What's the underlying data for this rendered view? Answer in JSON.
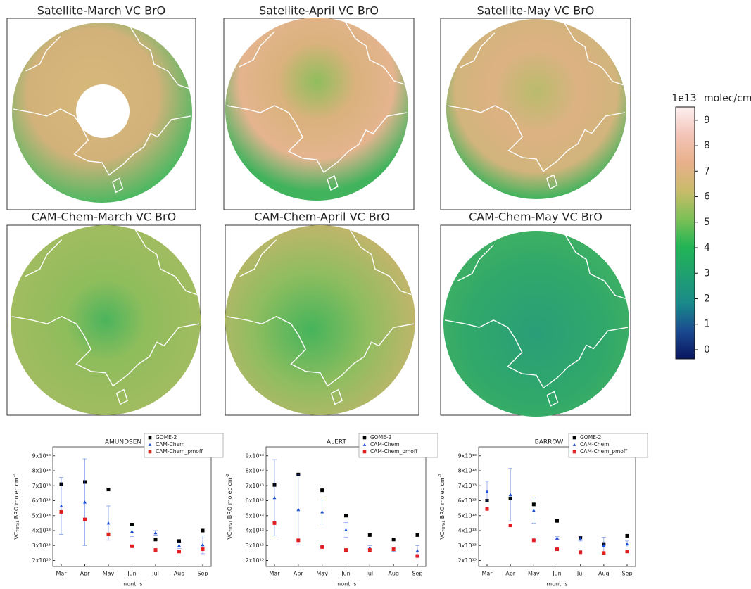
{
  "chart_data": [
    {
      "type": "map",
      "title": "Satellite-March VC BrO"
    },
    {
      "type": "map",
      "title": "Satellite-April VC BrO"
    },
    {
      "type": "map",
      "title": "Satellite-May VC BrO"
    },
    {
      "type": "map",
      "title": "CAM-Chem-March VC BrO"
    },
    {
      "type": "map",
      "title": "CAM-Chem-April VC BrO"
    },
    {
      "type": "map",
      "title": "CAM-Chem-May VC BrO"
    },
    {
      "type": "colorbar",
      "exponent": "1e13",
      "label": "molec/cm²",
      "colors": [
        "#0a1560",
        "#1a4a90",
        "#1a8a8a",
        "#1fa070",
        "#22b455",
        "#7cc055",
        "#c9bb6a",
        "#e8b08a",
        "#f4c4b8",
        "#fdf0f0"
      ],
      "ylim": [
        -0.36,
        9.52
      ],
      "yticks": [
        0,
        1,
        2,
        3,
        4,
        5,
        6,
        7,
        8,
        9
      ]
    },
    {
      "type": "scatter",
      "title": "AMUNDSEN",
      "xlabel": "months",
      "ylabel": [
        "VC",
        "TOTAL",
        " BRO molec cm",
        "-2"
      ],
      "categories": [
        "Mar",
        "Apr",
        "May",
        "Jun",
        "Jul",
        "Aug",
        "Sep"
      ],
      "ylim": [
        16000000000000.0,
        96000000000000.0
      ],
      "yticks": [
        {
          "value": 20000000000000.0,
          "label": "2x10¹³"
        },
        {
          "value": 30000000000000.0,
          "label": "3x10¹³"
        },
        {
          "value": 40000000000000.0,
          "label": "4x10¹³"
        },
        {
          "value": 50000000000000.0,
          "label": "5x10¹³"
        },
        {
          "value": 60000000000000.0,
          "label": "6x10¹³"
        },
        {
          "value": 70000000000000.0,
          "label": "7x10¹³"
        },
        {
          "value": 80000000000000.0,
          "label": "8x10¹³"
        },
        {
          "value": 90000000000000.0,
          "label": "9x10¹³"
        }
      ],
      "series": [
        {
          "name": "GOME-2",
          "color": "#000000",
          "marker": "square",
          "values": [
            71000000000000.0,
            72500000000000.0,
            67500000000000.0,
            44000000000000.0,
            34000000000000.0,
            33000000000000.0,
            40000000000000.0
          ]
        },
        {
          "name": "CAM-Chem",
          "color": "#1f4fd8",
          "marker": "triangle",
          "values": [
            56500000000000.0,
            59000000000000.0,
            45000000000000.0,
            39500000000000.0,
            38500000000000.0,
            30000000000000.0,
            30500000000000.0
          ],
          "errors": [
            19000000000000.0,
            29000000000000.0,
            11500000000000.0,
            3500000000000.0,
            1500000000000.0,
            2000000000000.0,
            6000000000000.0
          ]
        },
        {
          "name": "CAM-Chem_pmoff",
          "color": "#e02020",
          "marker": "square",
          "values": [
            52500000000000.0,
            47500000000000.0,
            37500000000000.0,
            29500000000000.0,
            27000000000000.0,
            26000000000000.0,
            27500000000000.0
          ]
        }
      ]
    },
    {
      "type": "scatter",
      "title": "ALERT",
      "xlabel": "months",
      "ylabel": [
        "VC",
        "TOTAL",
        " BRO molec cm",
        "-2"
      ],
      "categories": [
        "Mar",
        "Apr",
        "May",
        "Jun",
        "Jul",
        "Aug",
        "Sep"
      ],
      "ylim": [
        16000000000000.0,
        96000000000000.0
      ],
      "yticks": [
        {
          "value": 20000000000000.0,
          "label": "2x10¹³"
        },
        {
          "value": 30000000000000.0,
          "label": "3x10¹³"
        },
        {
          "value": 40000000000000.0,
          "label": "4x10¹³"
        },
        {
          "value": 50000000000000.0,
          "label": "5x10¹³"
        },
        {
          "value": 60000000000000.0,
          "label": "6x10¹³"
        },
        {
          "value": 70000000000000.0,
          "label": "7x10¹³"
        },
        {
          "value": 80000000000000.0,
          "label": "8x10¹³"
        },
        {
          "value": 90000000000000.0,
          "label": "9x10¹³"
        }
      ],
      "series": [
        {
          "name": "GOME-2",
          "color": "#000000",
          "marker": "square",
          "values": [
            70500000000000.0,
            77500000000000.0,
            67000000000000.0,
            50000000000000.0,
            37000000000000.0,
            34000000000000.0,
            37000000000000.0
          ]
        },
        {
          "name": "CAM-Chem",
          "color": "#1f4fd8",
          "marker": "triangle",
          "values": [
            62000000000000.0,
            54000000000000.0,
            52500000000000.0,
            40500000000000.0,
            28500000000000.0,
            27500000000000.0,
            26500000000000.0
          ],
          "errors": [
            25500000000000.0,
            23500000000000.0,
            8000000000000.0,
            5000000000000.0,
            1500000000000.0,
            1500000000000.0,
            3500000000000.0
          ]
        },
        {
          "name": "CAM-Chem_pmoff",
          "color": "#e02020",
          "marker": "square",
          "values": [
            45000000000000.0,
            33500000000000.0,
            29000000000000.0,
            27000000000000.0,
            27000000000000.0,
            27500000000000.0,
            23000000000000.0
          ]
        }
      ]
    },
    {
      "type": "scatter",
      "title": "BARROW",
      "xlabel": "months",
      "ylabel": [
        "VC",
        "TOTAL",
        " BRO molec cm",
        "-2"
      ],
      "categories": [
        "Mar",
        "Apr",
        "May",
        "Jun",
        "Jul",
        "Aug",
        "Sep"
      ],
      "ylim": [
        16000000000000.0,
        96000000000000.0
      ],
      "yticks": [
        {
          "value": 20000000000000.0,
          "label": "2x10¹³"
        },
        {
          "value": 30000000000000.0,
          "label": "3x10¹³"
        },
        {
          "value": 40000000000000.0,
          "label": "4x10¹³"
        },
        {
          "value": 50000000000000.0,
          "label": "5x10¹³"
        },
        {
          "value": 60000000000000.0,
          "label": "6x10¹³"
        },
        {
          "value": 70000000000000.0,
          "label": "7x10¹³"
        },
        {
          "value": 80000000000000.0,
          "label": "8x10¹³"
        },
        {
          "value": 90000000000000.0,
          "label": "9x10¹³"
        }
      ],
      "series": [
        {
          "name": "GOME-2",
          "color": "#000000",
          "marker": "square",
          "values": [
            60000000000000.0,
            61500000000000.0,
            57500000000000.0,
            46500000000000.0,
            35500000000000.0,
            31000000000000.0,
            36500000000000.0
          ]
        },
        {
          "name": "CAM-Chem",
          "color": "#1f4fd8",
          "marker": "triangle",
          "values": [
            66000000000000.0,
            64000000000000.0,
            53500000000000.0,
            35000000000000.0,
            34500000000000.0,
            30000000000000.0,
            31000000000000.0
          ],
          "errors": [
            7000000000000.0,
            17500000000000.0,
            8500000000000.0,
            1000000000000.0,
            1500000000000.0,
            5500000000000.0,
            2000000000000.0
          ]
        },
        {
          "name": "CAM-Chem_pmoff",
          "color": "#e02020",
          "marker": "square",
          "values": [
            54500000000000.0,
            43500000000000.0,
            33500000000000.0,
            27500000000000.0,
            25500000000000.0,
            25000000000000.0,
            26000000000000.0
          ]
        }
      ]
    }
  ]
}
